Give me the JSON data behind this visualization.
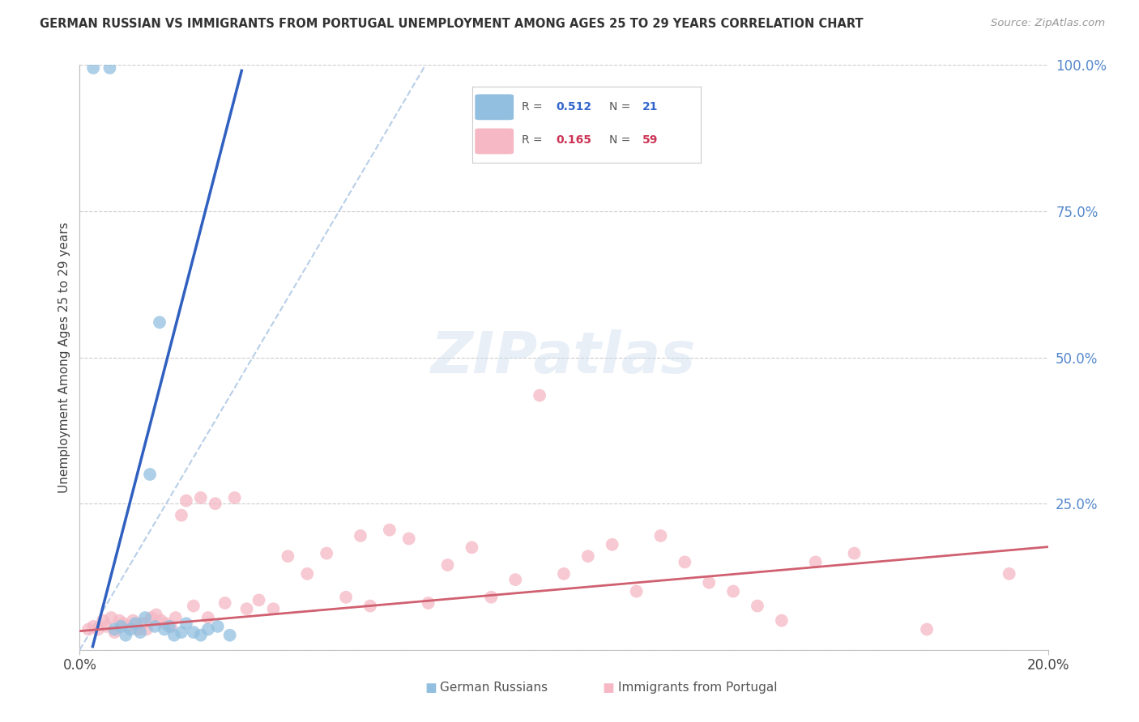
{
  "title": "GERMAN RUSSIAN VS IMMIGRANTS FROM PORTUGAL UNEMPLOYMENT AMONG AGES 25 TO 29 YEARS CORRELATION CHART",
  "source": "Source: ZipAtlas.com",
  "ylabel": "Unemployment Among Ages 25 to 29 years",
  "xlim": [
    0.0,
    20.0
  ],
  "ylim": [
    0.0,
    100.0
  ],
  "ytick_values": [
    0,
    25,
    50,
    75,
    100
  ],
  "ytick_labels": [
    "",
    "25.0%",
    "50.0%",
    "75.0%",
    "100.0%"
  ],
  "blue_color": "#92bfdf",
  "pink_color": "#f5b8c4",
  "blue_line_color": "#3060c0",
  "pink_line_color": "#d06070",
  "dashed_line_color": "#b8cfe8",
  "background_color": "#ffffff",
  "blue_slope": 32.0,
  "blue_intercept": -8.0,
  "pink_slope": 0.72,
  "pink_intercept": 3.2,
  "dash_slope": 14.0,
  "dash_intercept": 0.0,
  "gr_x": [
    0.28,
    0.62,
    0.72,
    0.85,
    0.95,
    1.05,
    1.15,
    1.25,
    1.35,
    1.45,
    1.55,
    1.65,
    1.75,
    1.85,
    1.95,
    2.1,
    2.2,
    2.35,
    2.5,
    2.65,
    2.85,
    3.1
  ],
  "gr_y": [
    99.5,
    99.5,
    3.5,
    4.0,
    2.5,
    3.5,
    4.5,
    3.0,
    5.5,
    30.0,
    4.0,
    56.0,
    3.5,
    4.0,
    2.5,
    3.0,
    4.5,
    3.0,
    2.5,
    3.5,
    4.0,
    2.5
  ],
  "port_x": [
    0.18,
    0.28,
    0.38,
    0.48,
    0.55,
    0.65,
    0.72,
    0.82,
    0.9,
    1.0,
    1.1,
    1.2,
    1.3,
    1.38,
    1.48,
    1.58,
    1.68,
    1.78,
    1.88,
    1.98,
    2.1,
    2.2,
    2.35,
    2.5,
    2.65,
    2.8,
    3.0,
    3.2,
    3.45,
    3.7,
    4.0,
    4.3,
    4.7,
    5.1,
    5.5,
    6.0,
    6.4,
    6.8,
    7.2,
    7.6,
    8.1,
    8.5,
    9.0,
    9.5,
    10.0,
    10.5,
    11.0,
    11.5,
    12.0,
    12.5,
    13.0,
    13.5,
    14.0,
    14.5,
    15.2,
    16.0,
    17.5,
    19.2,
    5.8
  ],
  "port_y": [
    3.5,
    4.0,
    3.5,
    5.0,
    4.0,
    5.5,
    3.0,
    5.0,
    4.5,
    4.0,
    5.0,
    3.5,
    4.5,
    3.5,
    5.5,
    6.0,
    5.0,
    4.5,
    4.0,
    5.5,
    23.0,
    25.5,
    7.5,
    26.0,
    5.5,
    25.0,
    8.0,
    26.0,
    7.0,
    8.5,
    7.0,
    16.0,
    13.0,
    16.5,
    9.0,
    7.5,
    20.5,
    19.0,
    8.0,
    14.5,
    17.5,
    9.0,
    12.0,
    43.5,
    13.0,
    16.0,
    18.0,
    10.0,
    19.5,
    15.0,
    11.5,
    10.0,
    7.5,
    5.0,
    15.0,
    16.5,
    3.5,
    13.0,
    19.5
  ]
}
